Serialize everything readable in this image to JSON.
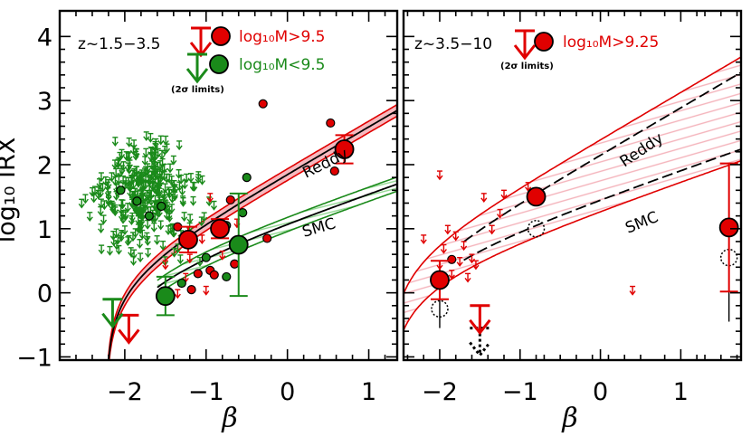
{
  "figure": {
    "ylabel": "log₁₀ IRX",
    "colors": {
      "red": "#e00000",
      "green": "#1a8a1a",
      "black": "#000000",
      "pink_fill": "#f4b3bb",
      "green_fill": "#8fd68f"
    }
  },
  "chart_data": [
    {
      "type": "scatter",
      "panel": "left",
      "xlabel": "β",
      "xlim": [
        -2.8,
        1.35
      ],
      "ylim": [
        -1.05,
        4.4
      ],
      "xticks": [
        -2,
        -1,
        0,
        1
      ],
      "yticks": [
        -1,
        0,
        1,
        2,
        3,
        4
      ],
      "redshift_label": "z~1.5−3.5",
      "legend": [
        {
          "label": "log₁₀M>9.5",
          "color": "red"
        },
        {
          "label": "log₁₀M<9.5",
          "color": "green"
        }
      ],
      "limits_note": "(2σ limits)",
      "curves": [
        {
          "name": "Reddy",
          "color": "red",
          "band": [
            0.0,
            -0.07
          ]
        },
        {
          "name": "SMC",
          "color": "green",
          "band": [
            0.0,
            -0.15
          ]
        }
      ],
      "curve_labels": [
        "Reddy",
        "SMC"
      ],
      "series": [
        {
          "name": "log₁₀M>9.5",
          "color": "red",
          "stacked": [
            {
              "x": -1.22,
              "y": 0.83,
              "err": 0.2
            },
            {
              "x": -0.83,
              "y": 1.0,
              "err": 0.15
            },
            {
              "x": 0.7,
              "y": 2.24,
              "err": 0.22
            }
          ],
          "stacked_limits": [
            {
              "x": -1.95,
              "y": -0.35
            }
          ],
          "points": [
            {
              "x": -0.3,
              "y": 2.95
            },
            {
              "x": 0.53,
              "y": 2.65
            },
            {
              "x": -0.7,
              "y": 1.45
            },
            {
              "x": -1.35,
              "y": 1.03
            },
            {
              "x": -0.25,
              "y": 0.85
            },
            {
              "x": -0.65,
              "y": 0.45
            },
            {
              "x": -0.95,
              "y": 0.35
            },
            {
              "x": -0.9,
              "y": 0.28
            },
            {
              "x": -1.1,
              "y": 0.3
            },
            {
              "x": -1.18,
              "y": 0.05
            },
            {
              "x": 0.58,
              "y": 1.9
            }
          ]
        },
        {
          "name": "log₁₀M<9.5",
          "color": "green",
          "stacked": [
            {
              "x": -1.5,
              "y": -0.05,
              "err": 0.3
            },
            {
              "x": -0.6,
              "y": 0.75,
              "err": 0.8
            }
          ],
          "stacked_limits": [
            {
              "x": -2.15,
              "y": -0.1
            }
          ],
          "points": [
            {
              "x": -0.5,
              "y": 1.8
            },
            {
              "x": -0.55,
              "y": 1.25
            },
            {
              "x": -2.05,
              "y": 1.6
            },
            {
              "x": -1.85,
              "y": 1.43
            },
            {
              "x": -1.7,
              "y": 1.2
            },
            {
              "x": -1.55,
              "y": 1.35
            },
            {
              "x": -0.75,
              "y": 0.25
            },
            {
              "x": -1.3,
              "y": 0.15
            },
            {
              "x": -1.0,
              "y": 0.55
            },
            {
              "x": -0.75,
              "y": 1.05
            }
          ],
          "upper_limits_count": 320
        }
      ]
    },
    {
      "type": "scatter",
      "panel": "right",
      "xlabel": "β",
      "xlim": [
        -2.45,
        1.75
      ],
      "ylim": [
        -1.05,
        4.4
      ],
      "xticks": [
        -2,
        -1,
        0,
        1
      ],
      "yticks": [
        -1,
        0,
        1,
        2,
        3,
        4
      ],
      "redshift_label": "z~3.5−10",
      "legend": [
        {
          "label": "log₁₀M>9.25",
          "color": "red"
        }
      ],
      "limits_note": "(2σ limits)",
      "curves": [
        {
          "name": "Reddy",
          "color": "red",
          "dashed": true
        },
        {
          "name": "SMC",
          "color": "red",
          "dashed": true
        }
      ],
      "curve_labels": [
        "Reddy",
        "SMC"
      ],
      "series": [
        {
          "name": "log₁₀M>9.25",
          "color": "red",
          "stacked": [
            {
              "x": -2.0,
              "y": 0.2,
              "err": 0.3
            },
            {
              "x": -0.8,
              "y": 1.5,
              "err": 0.0
            },
            {
              "x": 1.6,
              "y": 1.02,
              "err": 1.0
            }
          ],
          "stacked_limits": [
            {
              "x": -1.5,
              "y": -0.2
            }
          ],
          "points": [
            {
              "x": -1.85,
              "y": 0.52
            }
          ],
          "upper_limits": [
            {
              "x": -2.0,
              "y": 1.9
            },
            {
              "x": -1.2,
              "y": 1.6
            },
            {
              "x": -1.25,
              "y": 1.3
            },
            {
              "x": -0.9,
              "y": 1.72
            },
            {
              "x": -1.45,
              "y": 1.55
            },
            {
              "x": 0.4,
              "y": 0.1
            },
            {
              "x": -1.35,
              "y": 1.05
            }
          ]
        }
      ]
    }
  ]
}
